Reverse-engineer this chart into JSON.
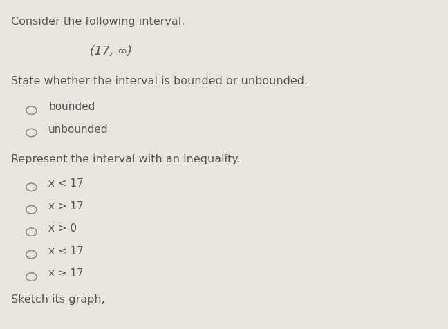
{
  "background_color": "#e8e4de",
  "title_line": "Consider the following interval.",
  "interval_display": "(17, ∞)",
  "section1_title": "State whether the interval is bounded or unbounded.",
  "option_bounded": "bounded",
  "option_unbounded": "unbounded",
  "section2_title": "Represent the interval with an inequality.",
  "inequalities": [
    "x < 17",
    "x > 17",
    "x > 0",
    "x ≤ 17",
    "x ≥ 17"
  ],
  "footer": "Sketch its graph,",
  "font_color": "#5a5a5a",
  "circle_color": "#888888",
  "title_fontsize": 11.5,
  "body_fontsize": 11.0,
  "interval_fontsize": 12.5
}
